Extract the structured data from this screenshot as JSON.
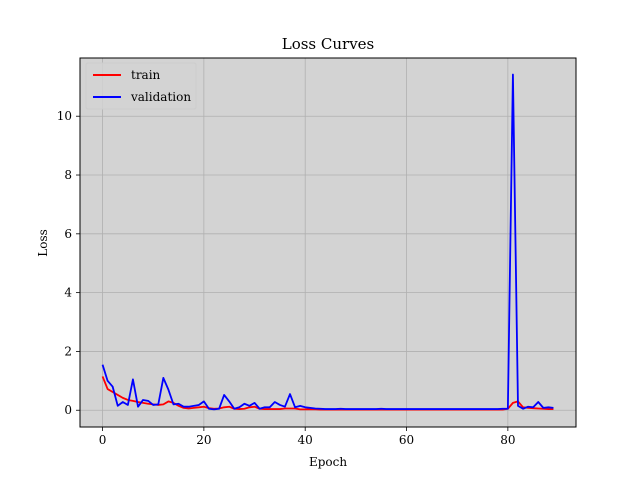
{
  "chart_data": {
    "type": "line",
    "title": "Loss Curves",
    "xlabel": "Epoch",
    "ylabel": "Loss",
    "xlim": [
      -4.45,
      93.45
    ],
    "ylim": [
      -0.57,
      11.98
    ],
    "xticks": [
      0,
      20,
      40,
      60,
      80
    ],
    "yticks": [
      0,
      2,
      4,
      6,
      8,
      10
    ],
    "grid": true,
    "background_color": "#d3d3d3",
    "grid_color": "#b0b0b0",
    "legend_placement": "upper-left",
    "series": [
      {
        "name": "train",
        "color": "#ff0000",
        "x": [
          0,
          1,
          2,
          3,
          4,
          5,
          6,
          7,
          8,
          9,
          10,
          11,
          12,
          13,
          14,
          15,
          16,
          17,
          18,
          19,
          20,
          21,
          22,
          23,
          24,
          25,
          26,
          27,
          28,
          29,
          30,
          31,
          32,
          33,
          34,
          35,
          36,
          37,
          38,
          39,
          40,
          41,
          42,
          43,
          44,
          45,
          46,
          47,
          48,
          49,
          50,
          51,
          52,
          53,
          54,
          55,
          56,
          57,
          58,
          59,
          60,
          61,
          62,
          63,
          64,
          65,
          66,
          67,
          68,
          69,
          70,
          71,
          72,
          73,
          74,
          75,
          76,
          77,
          78,
          79,
          80,
          81,
          82,
          83,
          84,
          85,
          86,
          87,
          88,
          89
        ],
        "y": [
          1.15,
          0.72,
          0.62,
          0.52,
          0.42,
          0.35,
          0.32,
          0.28,
          0.25,
          0.22,
          0.2,
          0.18,
          0.2,
          0.3,
          0.25,
          0.15,
          0.08,
          0.06,
          0.08,
          0.1,
          0.12,
          0.07,
          0.05,
          0.06,
          0.1,
          0.12,
          0.05,
          0.04,
          0.05,
          0.1,
          0.12,
          0.05,
          0.04,
          0.04,
          0.04,
          0.04,
          0.06,
          0.06,
          0.06,
          0.03,
          0.03,
          0.03,
          0.03,
          0.02,
          0.02,
          0.02,
          0.02,
          0.02,
          0.02,
          0.02,
          0.02,
          0.02,
          0.02,
          0.02,
          0.02,
          0.02,
          0.02,
          0.02,
          0.02,
          0.02,
          0.02,
          0.02,
          0.02,
          0.02,
          0.02,
          0.02,
          0.02,
          0.02,
          0.02,
          0.02,
          0.02,
          0.02,
          0.02,
          0.02,
          0.02,
          0.02,
          0.02,
          0.02,
          0.02,
          0.02,
          0.05,
          0.25,
          0.3,
          0.1,
          0.08,
          0.07,
          0.06,
          0.05,
          0.04,
          0.04
        ]
      },
      {
        "name": "validation",
        "color": "#0000ff",
        "x": [
          0,
          1,
          2,
          3,
          4,
          5,
          6,
          7,
          8,
          9,
          10,
          11,
          12,
          13,
          14,
          15,
          16,
          17,
          18,
          19,
          20,
          21,
          22,
          23,
          24,
          25,
          26,
          27,
          28,
          29,
          30,
          31,
          32,
          33,
          34,
          35,
          36,
          37,
          38,
          39,
          40,
          41,
          42,
          43,
          44,
          45,
          46,
          47,
          48,
          49,
          50,
          51,
          52,
          53,
          54,
          55,
          56,
          57,
          58,
          59,
          60,
          61,
          62,
          63,
          64,
          65,
          66,
          67,
          68,
          69,
          70,
          71,
          72,
          73,
          74,
          75,
          76,
          77,
          78,
          79,
          80,
          81,
          82,
          83,
          84,
          85,
          86,
          87,
          88,
          89
        ],
        "y": [
          1.55,
          1.0,
          0.8,
          0.15,
          0.28,
          0.18,
          1.05,
          0.12,
          0.35,
          0.32,
          0.18,
          0.2,
          1.1,
          0.7,
          0.2,
          0.22,
          0.12,
          0.12,
          0.15,
          0.18,
          0.3,
          0.05,
          0.03,
          0.05,
          0.52,
          0.3,
          0.05,
          0.1,
          0.22,
          0.15,
          0.25,
          0.05,
          0.1,
          0.1,
          0.28,
          0.18,
          0.12,
          0.55,
          0.1,
          0.15,
          0.1,
          0.08,
          0.06,
          0.05,
          0.04,
          0.04,
          0.04,
          0.05,
          0.04,
          0.04,
          0.04,
          0.04,
          0.04,
          0.04,
          0.04,
          0.05,
          0.04,
          0.04,
          0.04,
          0.04,
          0.04,
          0.04,
          0.04,
          0.04,
          0.04,
          0.04,
          0.04,
          0.04,
          0.04,
          0.04,
          0.04,
          0.04,
          0.04,
          0.04,
          0.04,
          0.04,
          0.04,
          0.04,
          0.04,
          0.05,
          0.05,
          11.42,
          0.15,
          0.05,
          0.12,
          0.1,
          0.28,
          0.08,
          0.1,
          0.08
        ]
      }
    ]
  }
}
